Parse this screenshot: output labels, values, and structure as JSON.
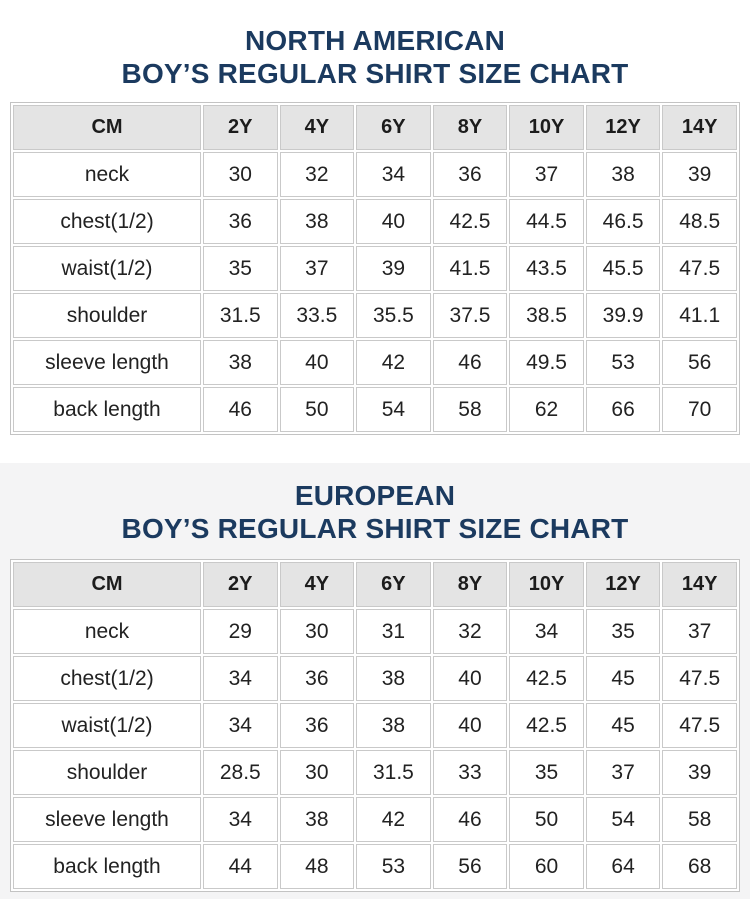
{
  "colors": {
    "page_bg": "#ffffff",
    "section2_bg": "#f4f4f5",
    "title_text": "#1b3a5f",
    "header_cell_bg": "#e4e4e4",
    "cell_border": "#c9c9c9",
    "body_text": "#222222"
  },
  "chart_data": [
    {
      "type": "table",
      "region": "north-american",
      "title_line1": "NORTH AMERICAN",
      "title_line2": "BOY’S REGULAR SHIRT SIZE CHART",
      "unit_header": "CM",
      "size_columns": [
        "2Y",
        "4Y",
        "6Y",
        "8Y",
        "10Y",
        "12Y",
        "14Y"
      ],
      "rows": [
        {
          "label": "neck",
          "values": [
            "30",
            "32",
            "34",
            "36",
            "37",
            "38",
            "39"
          ]
        },
        {
          "label": "chest(1/2)",
          "values": [
            "36",
            "38",
            "40",
            "42.5",
            "44.5",
            "46.5",
            "48.5"
          ]
        },
        {
          "label": "waist(1/2)",
          "values": [
            "35",
            "37",
            "39",
            "41.5",
            "43.5",
            "45.5",
            "47.5"
          ]
        },
        {
          "label": "shoulder",
          "values": [
            "31.5",
            "33.5",
            "35.5",
            "37.5",
            "38.5",
            "39.9",
            "41.1"
          ]
        },
        {
          "label": "sleeve length",
          "values": [
            "38",
            "40",
            "42",
            "46",
            "49.5",
            "53",
            "56"
          ]
        },
        {
          "label": "back length",
          "values": [
            "46",
            "50",
            "54",
            "58",
            "62",
            "66",
            "70"
          ]
        }
      ]
    },
    {
      "type": "table",
      "region": "european",
      "title_line1": "EUROPEAN",
      "title_line2": "BOY’S REGULAR SHIRT SIZE CHART",
      "unit_header": "CM",
      "size_columns": [
        "2Y",
        "4Y",
        "6Y",
        "8Y",
        "10Y",
        "12Y",
        "14Y"
      ],
      "rows": [
        {
          "label": "neck",
          "values": [
            "29",
            "30",
            "31",
            "32",
            "34",
            "35",
            "37"
          ]
        },
        {
          "label": "chest(1/2)",
          "values": [
            "34",
            "36",
            "38",
            "40",
            "42.5",
            "45",
            "47.5"
          ]
        },
        {
          "label": "waist(1/2)",
          "values": [
            "34",
            "36",
            "38",
            "40",
            "42.5",
            "45",
            "47.5"
          ]
        },
        {
          "label": "shoulder",
          "values": [
            "28.5",
            "30",
            "31.5",
            "33",
            "35",
            "37",
            "39"
          ]
        },
        {
          "label": "sleeve length",
          "values": [
            "34",
            "38",
            "42",
            "46",
            "50",
            "54",
            "58"
          ]
        },
        {
          "label": "back length",
          "values": [
            "44",
            "48",
            "53",
            "56",
            "60",
            "64",
            "68"
          ]
        }
      ]
    }
  ]
}
